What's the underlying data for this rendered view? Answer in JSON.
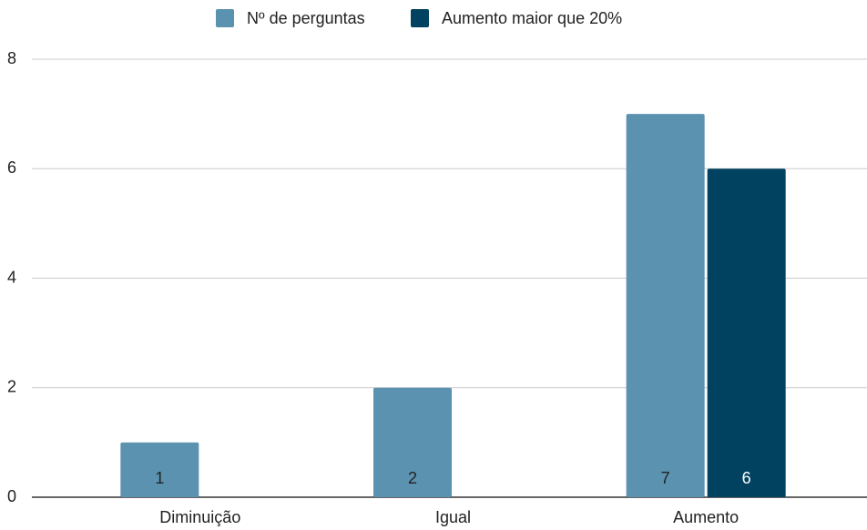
{
  "chart_data": {
    "type": "bar",
    "categories": [
      "Diminuição",
      "Igual",
      "Aumento"
    ],
    "series": [
      {
        "name": "Nº de perguntas",
        "color": "#5b92b0",
        "values": [
          1,
          2,
          7
        ]
      },
      {
        "name": "Aumento maior que 20%",
        "color": "#00425f",
        "values": [
          null,
          null,
          6
        ]
      }
    ],
    "ylim": [
      0,
      8
    ],
    "yticks": [
      0,
      2,
      4,
      6,
      8
    ],
    "grid": true,
    "legend": "top"
  }
}
